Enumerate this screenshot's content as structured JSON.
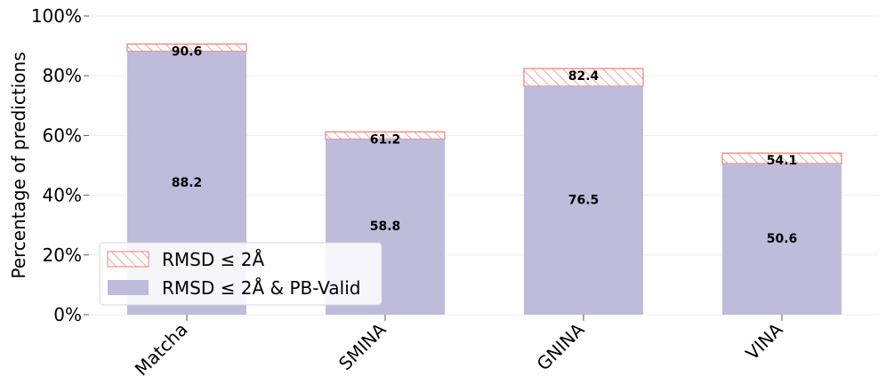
{
  "chart_data": {
    "type": "bar",
    "categories": [
      "Matcha",
      "SMINA",
      "GNINA",
      "VINA"
    ],
    "series": [
      {
        "name": "RMSD ≤ 2Å & PB-Valid",
        "values": [
          88.2,
          58.8,
          76.5,
          50.6
        ],
        "color": "#bebbdb"
      },
      {
        "name": "RMSD ≤ 2Å",
        "values": [
          90.6,
          61.2,
          82.4,
          54.1
        ],
        "color": "#f37d6d",
        "pattern": "hatch"
      }
    ],
    "data_labels": {
      "inner": [
        "88.2",
        "58.8",
        "76.5",
        "50.6"
      ],
      "outer": [
        "90.6",
        "61.2",
        "82.4",
        "54.1"
      ]
    },
    "ylabel": "Percentage of predictions",
    "ylim": [
      0,
      100
    ],
    "yticks": [
      0,
      20,
      40,
      60,
      80,
      100
    ],
    "ytick_labels": [
      "0%",
      "20%",
      "40%",
      "60%",
      "80%",
      "100%"
    ],
    "grid": true,
    "legend": {
      "placement": "lower-left",
      "entries": [
        "RMSD ≤ 2Å",
        "RMSD ≤ 2Å & PB-Valid"
      ]
    }
  }
}
